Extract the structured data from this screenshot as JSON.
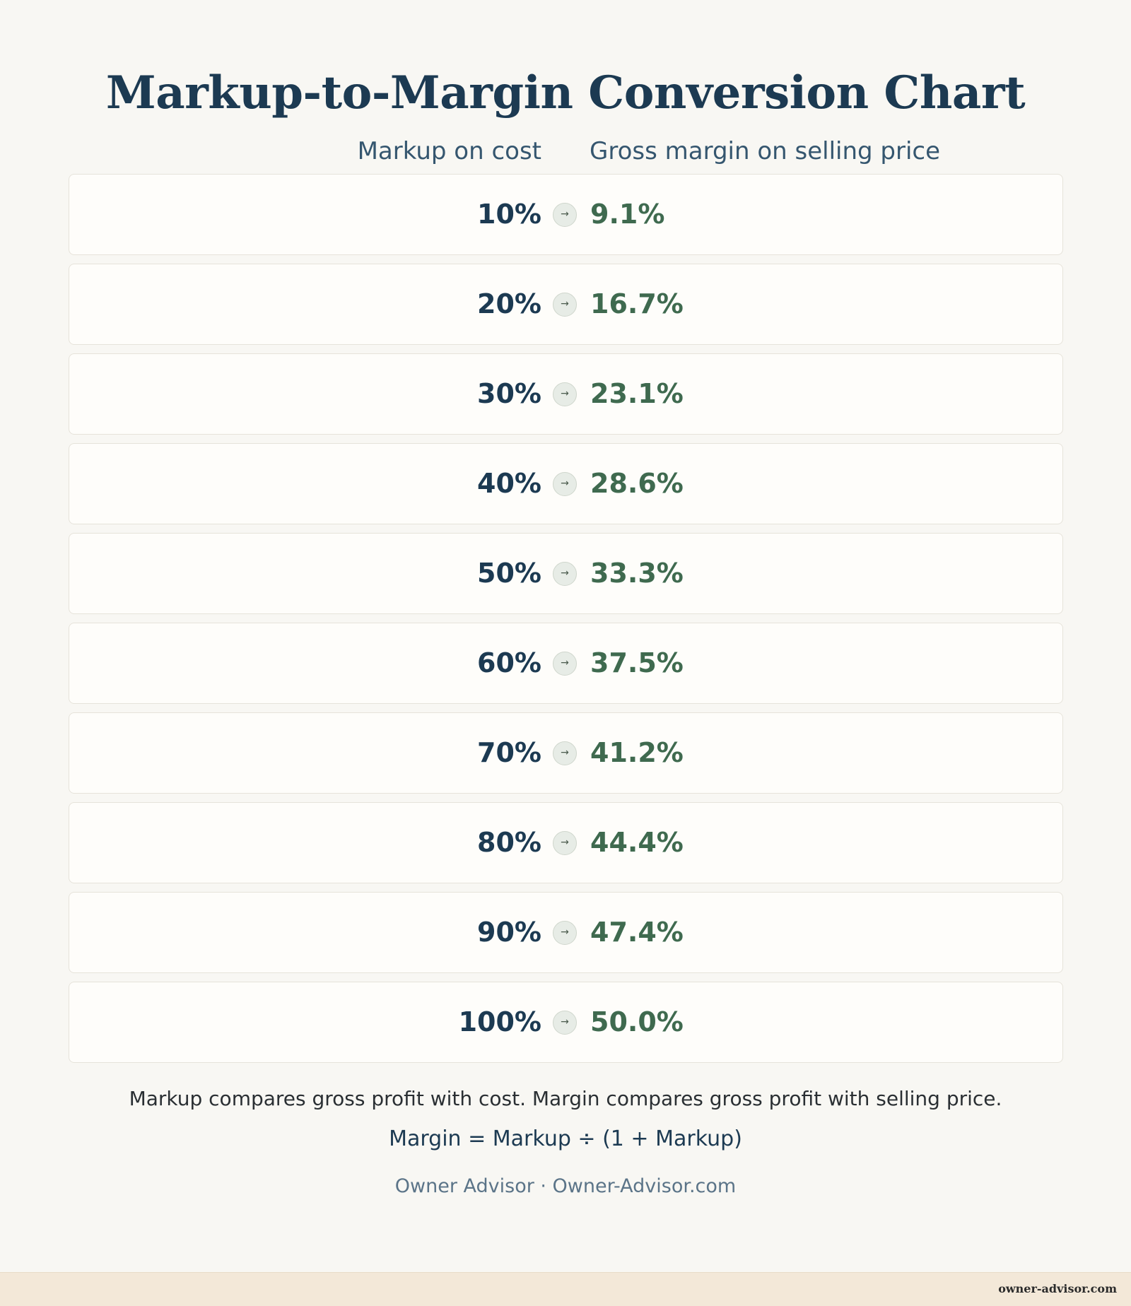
{
  "title": "Markup-to-Margin Conversion Chart",
  "columns": {
    "left": "Markup on cost",
    "right": "Gross margin on selling price"
  },
  "rows": [
    {
      "markup": "10%",
      "margin": "9.1%"
    },
    {
      "markup": "20%",
      "margin": "16.7%"
    },
    {
      "markup": "30%",
      "margin": "23.1%"
    },
    {
      "markup": "40%",
      "margin": "28.6%"
    },
    {
      "markup": "50%",
      "margin": "33.3%"
    },
    {
      "markup": "60%",
      "margin": "37.5%"
    },
    {
      "markup": "70%",
      "margin": "41.2%"
    },
    {
      "markup": "80%",
      "margin": "44.4%"
    },
    {
      "markup": "90%",
      "margin": "47.4%"
    },
    {
      "markup": "100%",
      "margin": "50.0%"
    }
  ],
  "arrow_icon": "→",
  "note": "Markup compares gross profit with cost. Margin compares gross profit with selling price.",
  "formula": "Margin = Markup ÷ (1 + Markup)",
  "credit": "Owner Advisor · Owner-Advisor.com",
  "footer": "owner-advisor.com",
  "colors": {
    "title": "#1c3a52",
    "markup_value": "#1c3a52",
    "margin_value": "#3f6a4f",
    "background": "#f8f7f3",
    "footer_bar": "#f3e8d8"
  }
}
